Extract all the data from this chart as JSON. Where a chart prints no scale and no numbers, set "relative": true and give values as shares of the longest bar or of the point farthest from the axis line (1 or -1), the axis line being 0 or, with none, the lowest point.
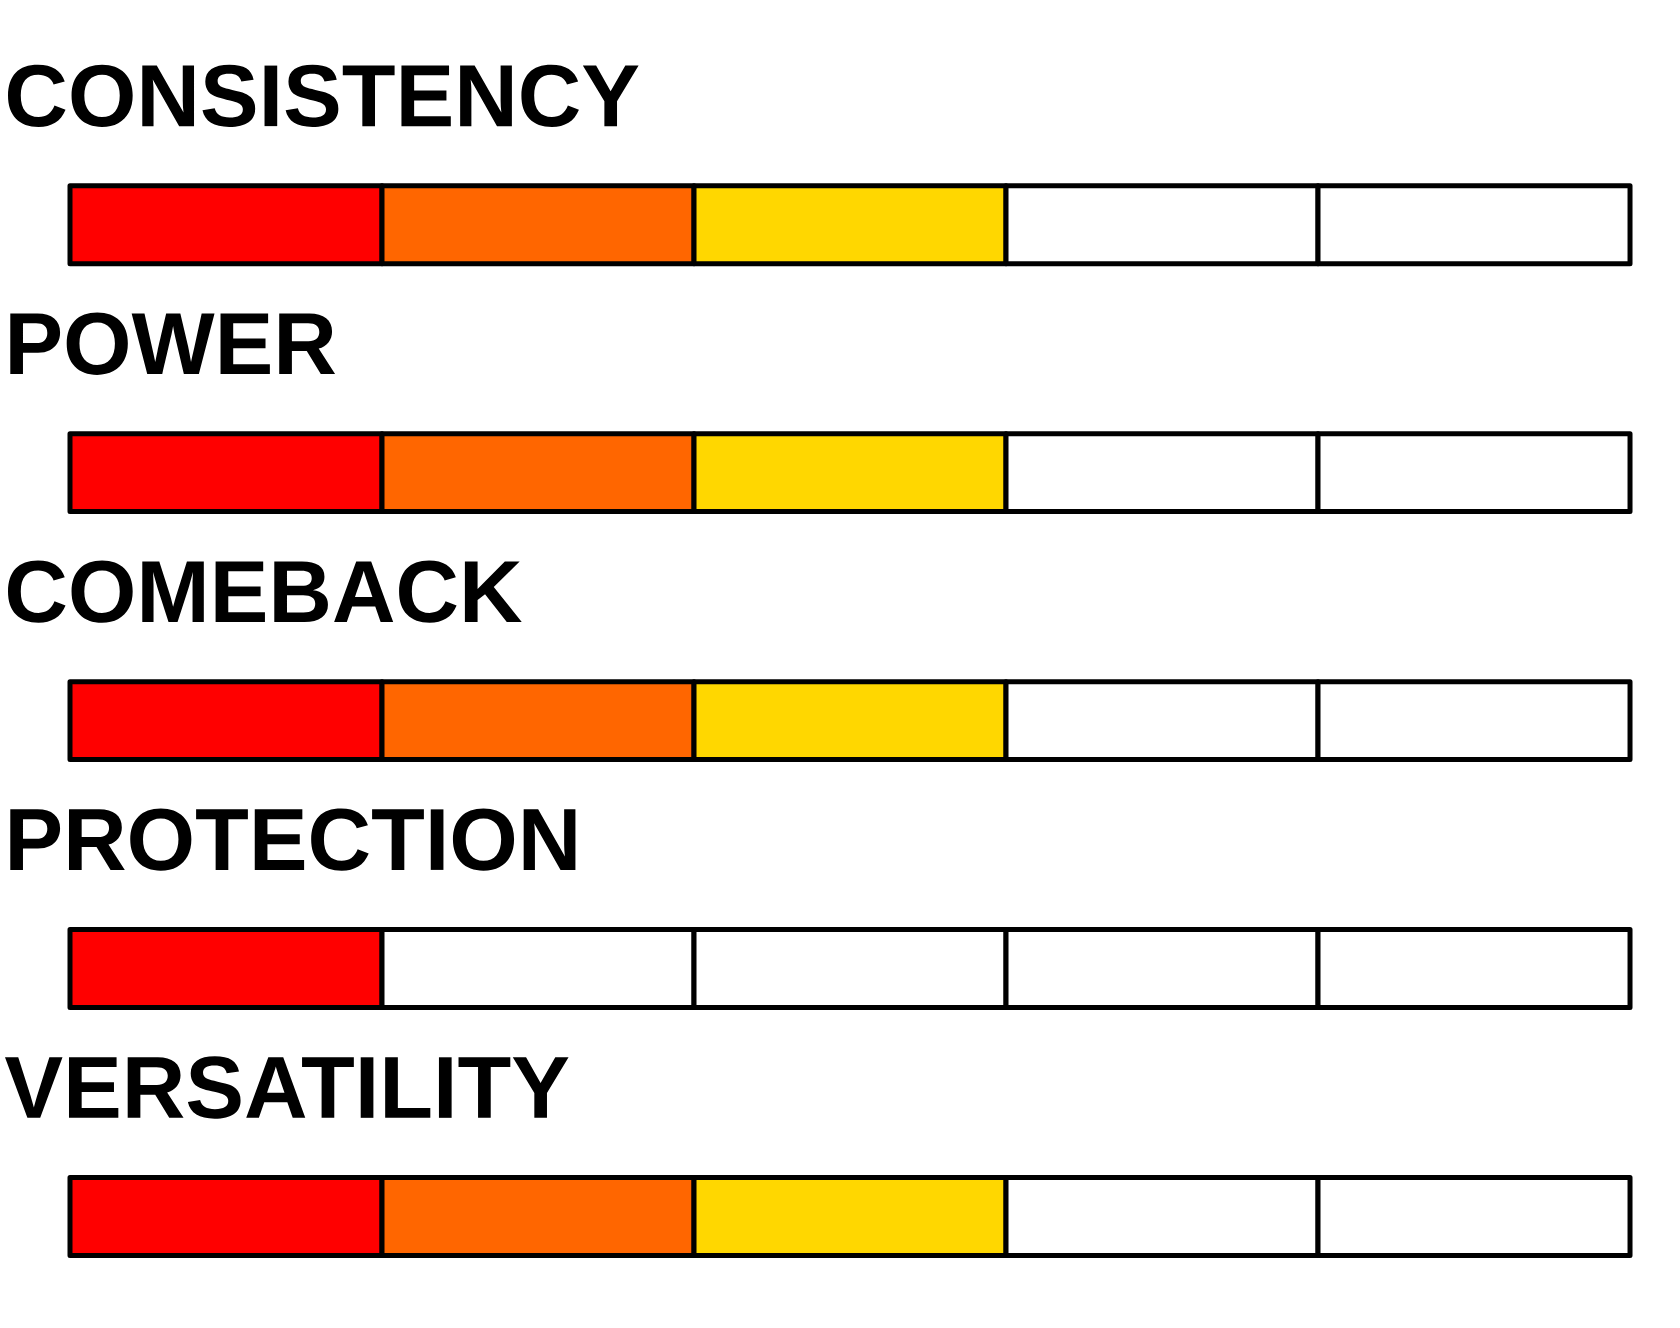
{
  "chart_data": {
    "type": "bar",
    "orientation": "horizontal",
    "stacked": true,
    "relative": true,
    "categories": [
      "CONSISTENCY",
      "POWER",
      "COMEBACK",
      "PROTECTION",
      "VERSATILITY"
    ],
    "series": [
      {
        "color": "#ff0000",
        "values": [
          0.2,
          0.2,
          0.2,
          0.2,
          0.2
        ]
      },
      {
        "colors": [
          "#ff6600",
          "#ff6600",
          "#ff6600",
          "#ffffff",
          "#ff6600"
        ],
        "values": [
          0.2,
          0.2,
          0.2,
          0.2,
          0.2
        ]
      },
      {
        "colors": [
          "#ffd700",
          "#ffd700",
          "#ffd700",
          "#ffffff",
          "#ffd700"
        ],
        "values": [
          0.2,
          0.2,
          0.2,
          0.2,
          0.2
        ]
      },
      {
        "color": "#ffffff",
        "values": [
          0.2,
          0.2,
          0.2,
          0.2,
          0.2
        ]
      },
      {
        "color": "#ffffff",
        "values": [
          0.2,
          0.2,
          0.2,
          0.2,
          0.2
        ]
      }
    ]
  }
}
